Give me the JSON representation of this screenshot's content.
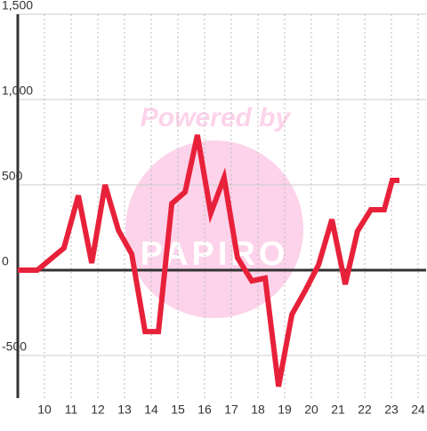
{
  "chart_data": {
    "type": "line",
    "x": [
      9,
      9.73,
      10.73,
      11.27,
      11.77,
      12.27,
      12.77,
      13.27,
      13.77,
      14.27,
      14.77,
      15.27,
      15.73,
      16.23,
      16.73,
      17.23,
      17.77,
      18.27,
      18.77,
      19.27,
      19.77,
      20.27,
      20.77,
      21.27,
      21.73,
      22.23,
      22.73,
      23.03,
      23.3
    ],
    "series": [
      {
        "color": "#e8213a",
        "values": [
          0,
          0,
          130,
          437,
          42,
          500,
          234,
          94,
          -360,
          -360,
          390,
          458,
          792,
          333,
          542,
          73,
          -63,
          -47,
          -682,
          -260,
          -120,
          31,
          297,
          -83,
          229,
          354,
          354,
          526,
          526
        ]
      }
    ],
    "xlim": [
      9,
      24.3
    ],
    "xticks": [
      10,
      11,
      12,
      13,
      14,
      15,
      16,
      17,
      18,
      19,
      20,
      21,
      22,
      23,
      24
    ],
    "ylim": [
      -750,
      1500
    ],
    "yticks": [
      {
        "value": 1500,
        "label": "1,500"
      },
      {
        "value": 1000,
        "label": "1,000"
      },
      500,
      0,
      -500
    ],
    "grid": true,
    "watermark": {
      "text": "Powered by",
      "logo": "PAPIRO"
    }
  }
}
